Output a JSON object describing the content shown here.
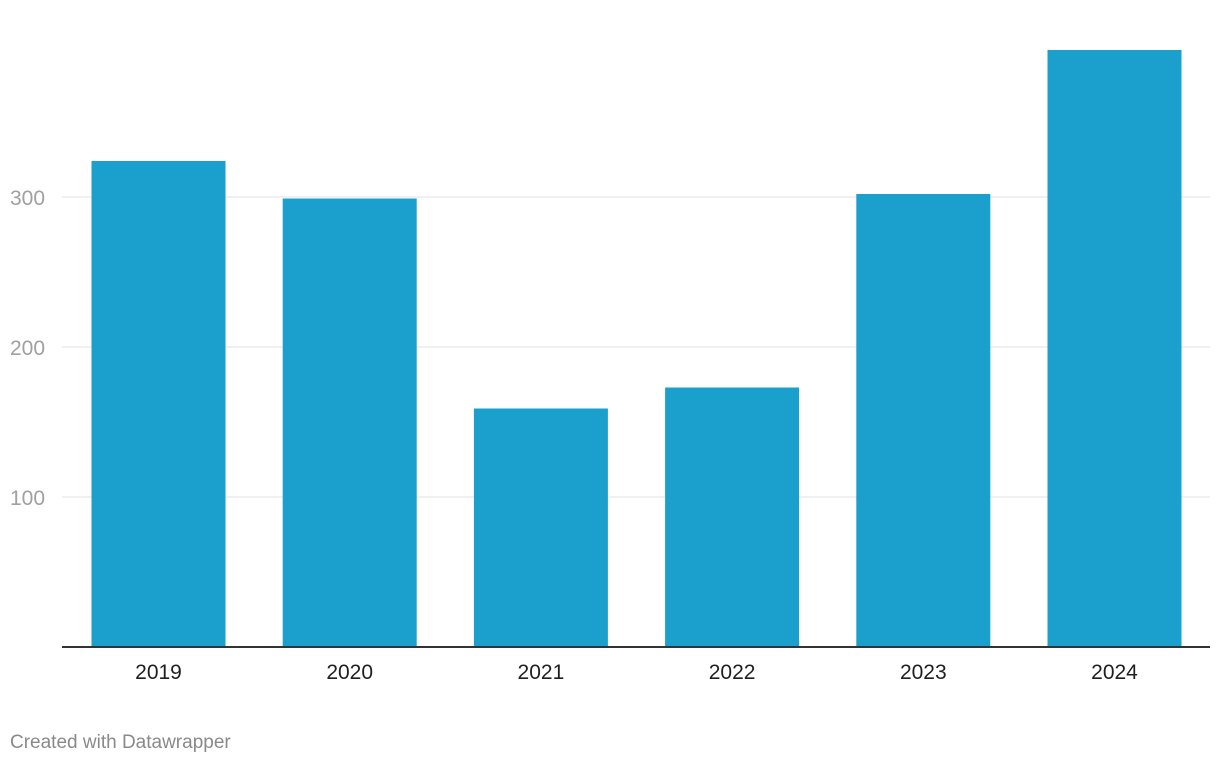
{
  "chart_data": {
    "type": "bar",
    "categories": [
      "2019",
      "2020",
      "2021",
      "2022",
      "2023",
      "2024"
    ],
    "values": [
      324,
      299,
      159,
      173,
      302,
      398
    ],
    "ylim": [
      0,
      400
    ],
    "y_ticks": [
      100,
      200,
      300
    ],
    "grid": true,
    "colors": {
      "bar": "#1ba0cd"
    },
    "title": "",
    "xlabel": "",
    "ylabel": ""
  },
  "footer": {
    "credit": "Created with Datawrapper"
  }
}
